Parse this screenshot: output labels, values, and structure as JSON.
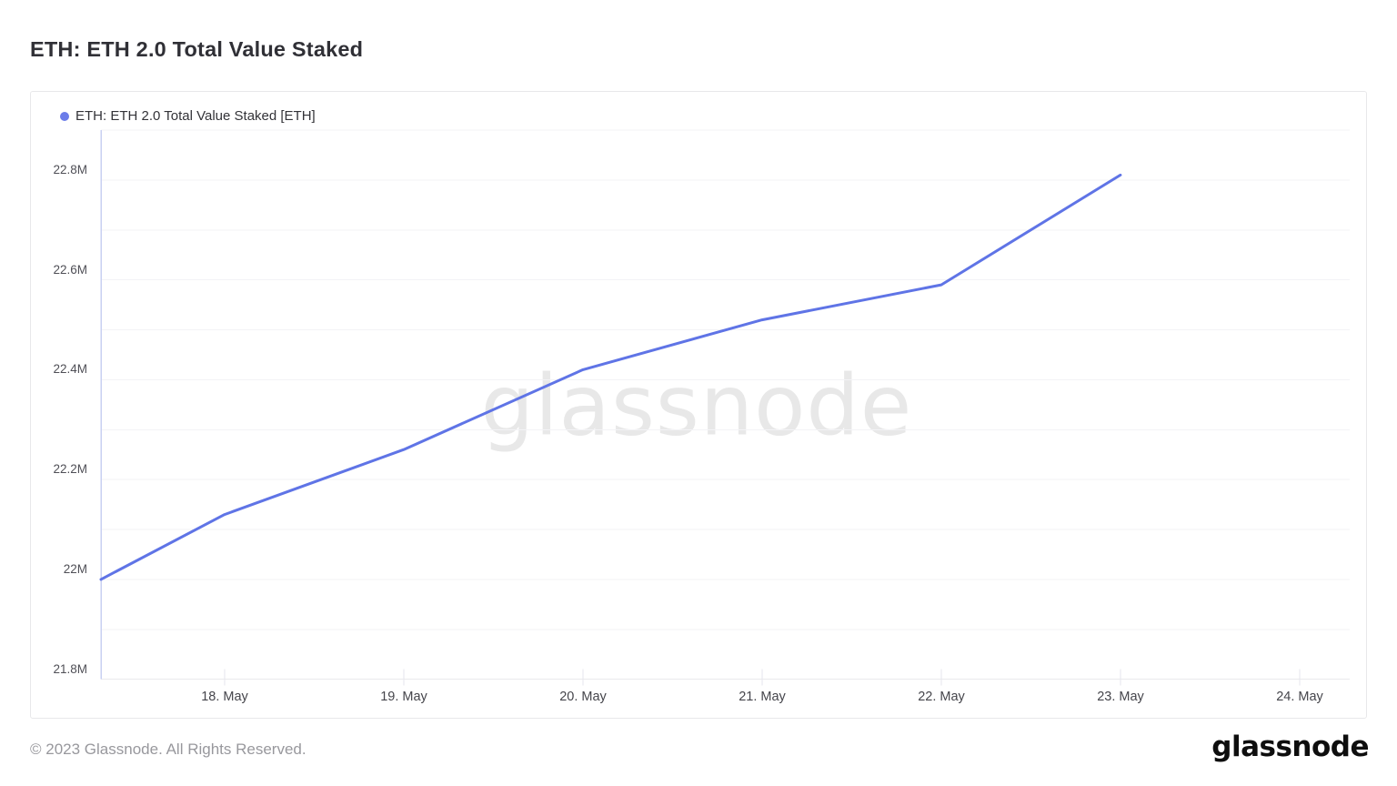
{
  "header": {
    "title": "ETH: ETH 2.0 Total Value Staked"
  },
  "chart": {
    "legend": {
      "label": "ETH: ETH 2.0 Total Value Staked [ETH]"
    },
    "watermark": "glassnode",
    "colors": {
      "line": "#5f74e6",
      "legend_dot": "#6b7ce9",
      "y_axis_line": "#c8d0f2",
      "gridline": "#f3f3f6",
      "bottom_axis_line": "#e9e9ed",
      "tick": "#e6e6ec",
      "axis_label": "#4d4d54"
    }
  },
  "chart_data": {
    "type": "line",
    "title": "ETH: ETH 2.0 Total Value Staked",
    "series": [
      {
        "name": "ETH: ETH 2.0 Total Value Staked [ETH]",
        "x_day_of_may_2023": [
          17.31,
          18,
          19,
          20,
          21,
          22,
          23
        ],
        "values_million_eth": [
          22.0,
          22.13,
          22.26,
          22.42,
          22.52,
          22.59,
          22.81
        ]
      }
    ],
    "xlabel": "",
    "ylabel": "",
    "x_tick_labels": [
      "18. May",
      "19. May",
      "20. May",
      "21. May",
      "22. May",
      "23. May",
      "24. May"
    ],
    "x_tick_days": [
      18,
      19,
      20,
      21,
      22,
      23,
      24
    ],
    "y_tick_labels": [
      "21.8M",
      "22M",
      "22.2M",
      "22.4M",
      "22.6M",
      "22.8M"
    ],
    "y_tick_values": [
      21.8,
      22.0,
      22.2,
      22.4,
      22.6,
      22.8
    ],
    "ylim": [
      21.8,
      22.9
    ],
    "xlim_day_of_may_2023": [
      17.31,
      24.28
    ],
    "grid_step": 0.1,
    "grid": "horizontal",
    "legend_position": "top-left"
  },
  "footer": {
    "copyright": "© 2023 Glassnode. All Rights Reserved.",
    "brand_logo": "glassnode"
  }
}
